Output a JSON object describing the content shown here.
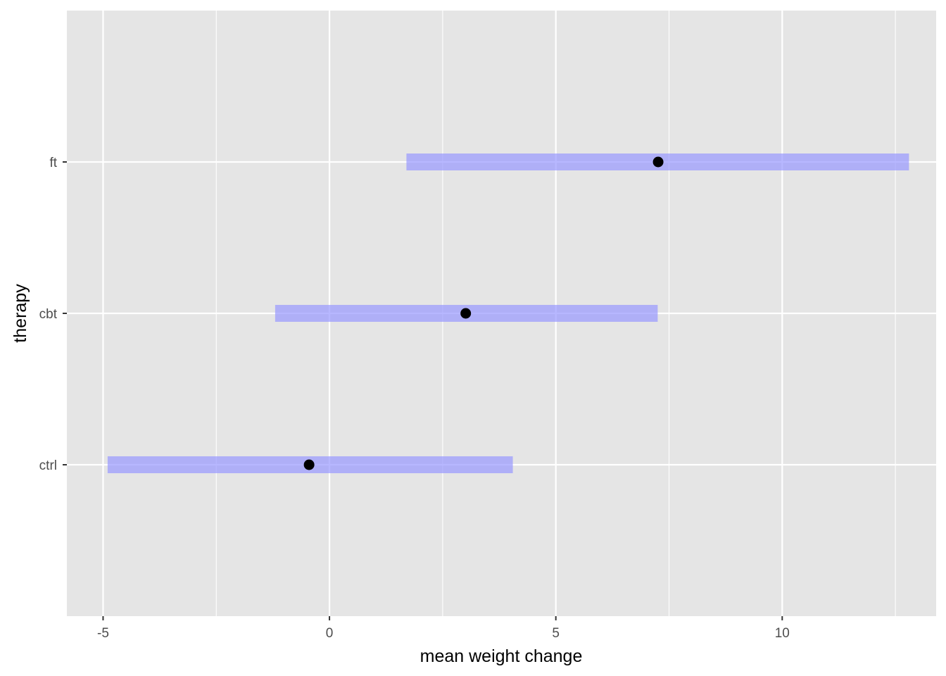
{
  "colors": {
    "panel_background": "#e5e5e5",
    "grid_major": "#ffffff",
    "interval_fill": "#9999ff",
    "point": "#000000",
    "tick_text": "#4d4d4d"
  },
  "chart_data": {
    "type": "pointrange",
    "orientation": "horizontal",
    "xlabel": "mean weight change",
    "ylabel": "therapy",
    "xlim": [
      -5.8,
      13.4
    ],
    "x_ticks": [
      -5,
      0,
      5,
      10
    ],
    "x_tick_labels": [
      "-5",
      "0",
      "5",
      "10"
    ],
    "categories": [
      "ctrl",
      "cbt",
      "ft"
    ],
    "mean": [
      -0.45,
      3.01,
      7.26
    ],
    "lower": [
      -4.9,
      -1.2,
      1.7
    ],
    "upper": [
      4.05,
      7.25,
      12.8
    ],
    "grid": true,
    "legend": "none"
  }
}
